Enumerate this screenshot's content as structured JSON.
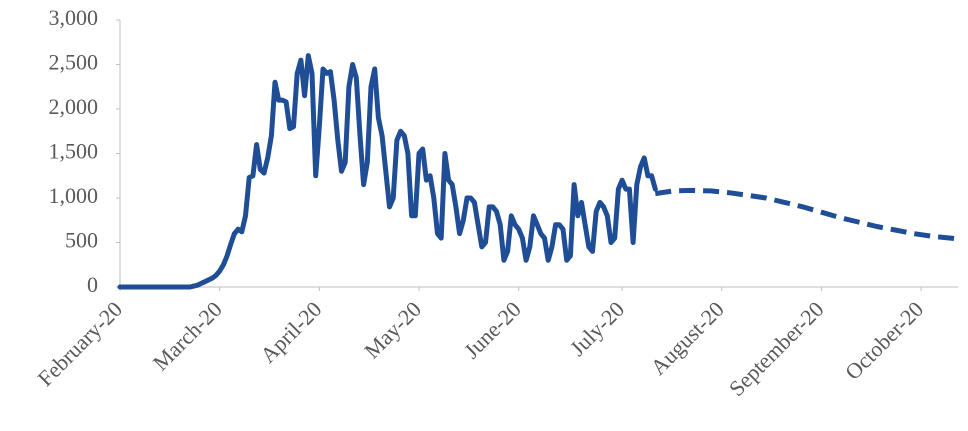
{
  "chart_data": {
    "type": "line",
    "xlim": [
      0,
      227
    ],
    "xticks": [
      {
        "value": 0,
        "label": "February-20"
      },
      {
        "value": 27,
        "label": "March-20"
      },
      {
        "value": 54,
        "label": "April-20"
      },
      {
        "value": 81,
        "label": "May-20"
      },
      {
        "value": 108,
        "label": "June-20"
      },
      {
        "value": 136,
        "label": "July-20"
      },
      {
        "value": 163,
        "label": "August-20"
      },
      {
        "value": 190,
        "label": "September-20"
      },
      {
        "value": 217,
        "label": "October-20"
      }
    ],
    "ylim": [
      0,
      3000
    ],
    "yticks": [
      0,
      500,
      {
        "value": 1000,
        "label": "1,000"
      },
      {
        "value": 1500,
        "label": "1,500"
      },
      {
        "value": 2000,
        "label": "2,000"
      },
      {
        "value": 2500,
        "label": "2,500"
      },
      {
        "value": 3000,
        "label": "3,000"
      }
    ],
    "series": [
      {
        "color": "#1f4e97",
        "dashed": false,
        "x": [
          0,
          1,
          2,
          3,
          4,
          5,
          6,
          7,
          8,
          9,
          10,
          11,
          12,
          13,
          14,
          15,
          16,
          17,
          18,
          19,
          20,
          21,
          22,
          23,
          24,
          25,
          26,
          27,
          28,
          29,
          30,
          31,
          32,
          33,
          34,
          35,
          36,
          37,
          38,
          39,
          40,
          41,
          42,
          43,
          44,
          45,
          46,
          47,
          48,
          49,
          50,
          51,
          52,
          53,
          54,
          55,
          56,
          57,
          58,
          59,
          60,
          61,
          62,
          63,
          64,
          65,
          66,
          67,
          68,
          69,
          70,
          71,
          72,
          73,
          74,
          75,
          76,
          77,
          78,
          79,
          80,
          81,
          82,
          83,
          84,
          85,
          86,
          87,
          88,
          89,
          90,
          91,
          92,
          93,
          94,
          95,
          96,
          97,
          98,
          99,
          100,
          101,
          102,
          103,
          104,
          105,
          106,
          107,
          108,
          109,
          110,
          111,
          112,
          113,
          114,
          115,
          116,
          117,
          118,
          119,
          120,
          121,
          122,
          123,
          124,
          125,
          126,
          127,
          128,
          129,
          130,
          131,
          132,
          133,
          134,
          135,
          136,
          137,
          138,
          139,
          140,
          141,
          142,
          143,
          144,
          145
        ],
        "values": [
          0,
          0,
          0,
          0,
          0,
          0,
          0,
          0,
          0,
          0,
          0,
          0,
          0,
          0,
          0,
          0,
          0,
          0,
          0,
          0,
          10,
          20,
          40,
          60,
          80,
          100,
          130,
          180,
          250,
          350,
          480,
          600,
          650,
          620,
          800,
          1230,
          1250,
          1600,
          1320,
          1280,
          1450,
          1700,
          2300,
          2100,
          2100,
          2080,
          1780,
          1800,
          2400,
          2550,
          2150,
          2600,
          2400,
          1250,
          1800,
          2450,
          2400,
          2420,
          2100,
          1650,
          1300,
          1400,
          2250,
          2500,
          2350,
          1700,
          1150,
          1400,
          2250,
          2450,
          1900,
          1700,
          1300,
          900,
          1000,
          1650,
          1750,
          1700,
          1500,
          800,
          800,
          1500,
          1550,
          1200,
          1250,
          1000,
          600,
          550,
          1500,
          1200,
          1150,
          900,
          600,
          750,
          1000,
          1000,
          950,
          700,
          450,
          500,
          900,
          900,
          850,
          700,
          300,
          400,
          800,
          700,
          650,
          550,
          300,
          450,
          800,
          700,
          600,
          550,
          300,
          450,
          700,
          700,
          650,
          300,
          350,
          1150,
          800,
          950,
          700,
          450,
          400,
          850,
          950,
          900,
          800,
          500,
          550,
          1100,
          1200,
          1100,
          1100,
          500,
          1150,
          1350,
          1450,
          1250,
          1250,
          1100
        ]
      },
      {
        "color": "#1f4e97",
        "dashed": true,
        "x": [
          145,
          150,
          155,
          160,
          165,
          170,
          175,
          180,
          185,
          190,
          195,
          200,
          205,
          210,
          215,
          220,
          225,
          227
        ],
        "values": [
          1050,
          1080,
          1085,
          1080,
          1060,
          1030,
          1000,
          950,
          900,
          840,
          780,
          730,
          680,
          640,
          600,
          570,
          550,
          540
        ]
      }
    ]
  }
}
